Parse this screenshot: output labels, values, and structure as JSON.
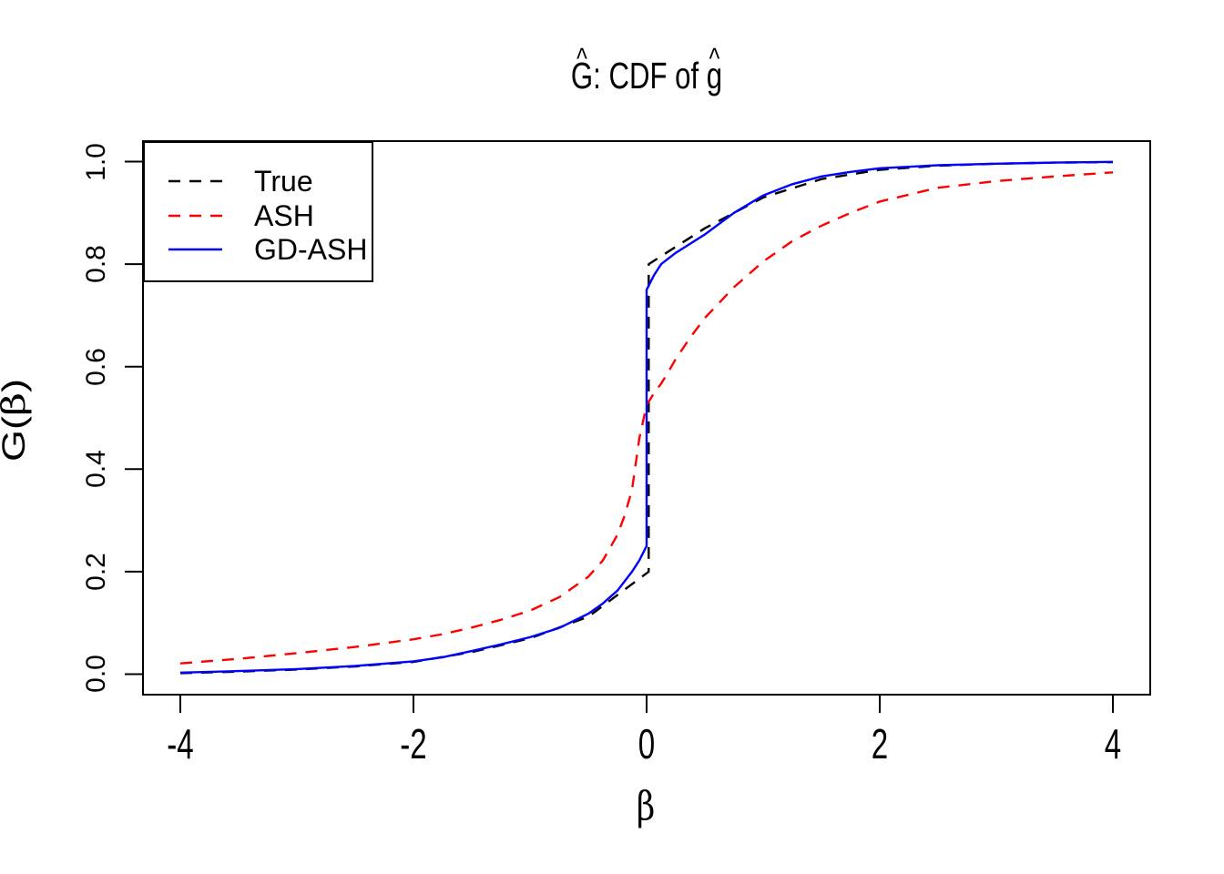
{
  "title": {
    "hat": "^",
    "G": "G",
    "rest": ": CDF of ",
    "g": "g"
  },
  "axes": {
    "x_label": "β",
    "y_label": {
      "hat": "^",
      "G": "G",
      "open": "(",
      "beta": "β",
      "close": ")"
    },
    "x_ticks": [
      {
        "v": -4,
        "label": "-4"
      },
      {
        "v": -2,
        "label": "-2"
      },
      {
        "v": 0,
        "label": "0"
      },
      {
        "v": 2,
        "label": "2"
      },
      {
        "v": 4,
        "label": "4"
      }
    ],
    "y_ticks": [
      {
        "v": 0.0,
        "label": "0.0"
      },
      {
        "v": 0.2,
        "label": "0.2"
      },
      {
        "v": 0.4,
        "label": "0.4"
      },
      {
        "v": 0.6,
        "label": "0.6"
      },
      {
        "v": 0.8,
        "label": "0.8"
      },
      {
        "v": 1.0,
        "label": "1.0"
      }
    ]
  },
  "legend": {
    "items": [
      {
        "label": "True",
        "color": "#000000",
        "dash": "13,10"
      },
      {
        "label": "ASH",
        "color": "#ff0000",
        "dash": "13,10"
      },
      {
        "label": "GD-ASH",
        "color": "#0000ff",
        "dash": "none"
      }
    ]
  },
  "colors": {
    "foreground": "#000000",
    "background": "#ffffff",
    "true": "#000000",
    "ash": "#ff0000",
    "gdash": "#0000ff"
  },
  "chart_data": {
    "type": "line",
    "title": "Ĝ: CDF of ĝ",
    "xlabel": "β",
    "ylabel": "Ĝ(β)",
    "xlim": [
      -4,
      4
    ],
    "ylim": [
      0,
      1
    ],
    "x_axis_expanded": [
      -4.32,
      4.32
    ],
    "y_axis_expanded": [
      -0.04,
      1.04
    ],
    "grid": false,
    "legend_position": "topleft",
    "series": [
      {
        "name": "True",
        "color": "#000000",
        "style": "dashed",
        "x": [
          -4,
          -3.5,
          -3,
          -2.5,
          -2,
          -1.5,
          -1,
          -0.5,
          0.018,
          0.018,
          0.5,
          1,
          1.5,
          2,
          2.5,
          3,
          3.5,
          4
        ],
        "y": [
          0.002,
          0.005,
          0.009,
          0.015,
          0.024,
          0.043,
          0.07,
          0.112,
          0.2,
          0.8,
          0.87,
          0.93,
          0.966,
          0.984,
          0.992,
          0.996,
          0.998,
          0.999
        ]
      },
      {
        "name": "ASH",
        "color": "#ff0000",
        "style": "dashed",
        "x": [
          -4,
          -3.5,
          -3,
          -2.5,
          -2,
          -1.75,
          -1.5,
          -1.25,
          -1,
          -0.75,
          -0.5,
          -0.375,
          -0.25,
          -0.1875,
          -0.125,
          -0.0625,
          0,
          0.0625,
          0.125,
          0.1875,
          0.25,
          0.375,
          0.5,
          0.75,
          1,
          1.25,
          1.5,
          1.75,
          2,
          2.5,
          3,
          3.5,
          4
        ],
        "y": [
          0.021,
          0.03,
          0.041,
          0.053,
          0.068,
          0.078,
          0.091,
          0.106,
          0.124,
          0.15,
          0.19,
          0.222,
          0.272,
          0.31,
          0.36,
          0.46,
          0.525,
          0.548,
          0.567,
          0.59,
          0.615,
          0.657,
          0.695,
          0.755,
          0.805,
          0.845,
          0.875,
          0.9,
          0.922,
          0.949,
          0.962,
          0.971,
          0.979
        ]
      },
      {
        "name": "GD-ASH",
        "color": "#0000ff",
        "style": "solid",
        "x": [
          -4,
          -3.5,
          -3,
          -2.5,
          -2,
          -1.75,
          -1.5,
          -1.25,
          -1,
          -0.75,
          -0.5,
          -0.375,
          -0.25,
          -0.125,
          -0.0625,
          0,
          0,
          0.0625,
          0.125,
          0.25,
          0.375,
          0.5,
          0.75,
          1,
          1.25,
          1.5,
          1.75,
          2,
          2.5,
          3,
          3.5,
          4
        ],
        "y": [
          0.003,
          0.006,
          0.01,
          0.016,
          0.025,
          0.033,
          0.045,
          0.058,
          0.072,
          0.09,
          0.118,
          0.138,
          0.163,
          0.2,
          0.222,
          0.25,
          0.75,
          0.778,
          0.8,
          0.822,
          0.84,
          0.858,
          0.9,
          0.934,
          0.956,
          0.971,
          0.98,
          0.987,
          0.993,
          0.996,
          0.998,
          0.9995
        ]
      }
    ]
  }
}
